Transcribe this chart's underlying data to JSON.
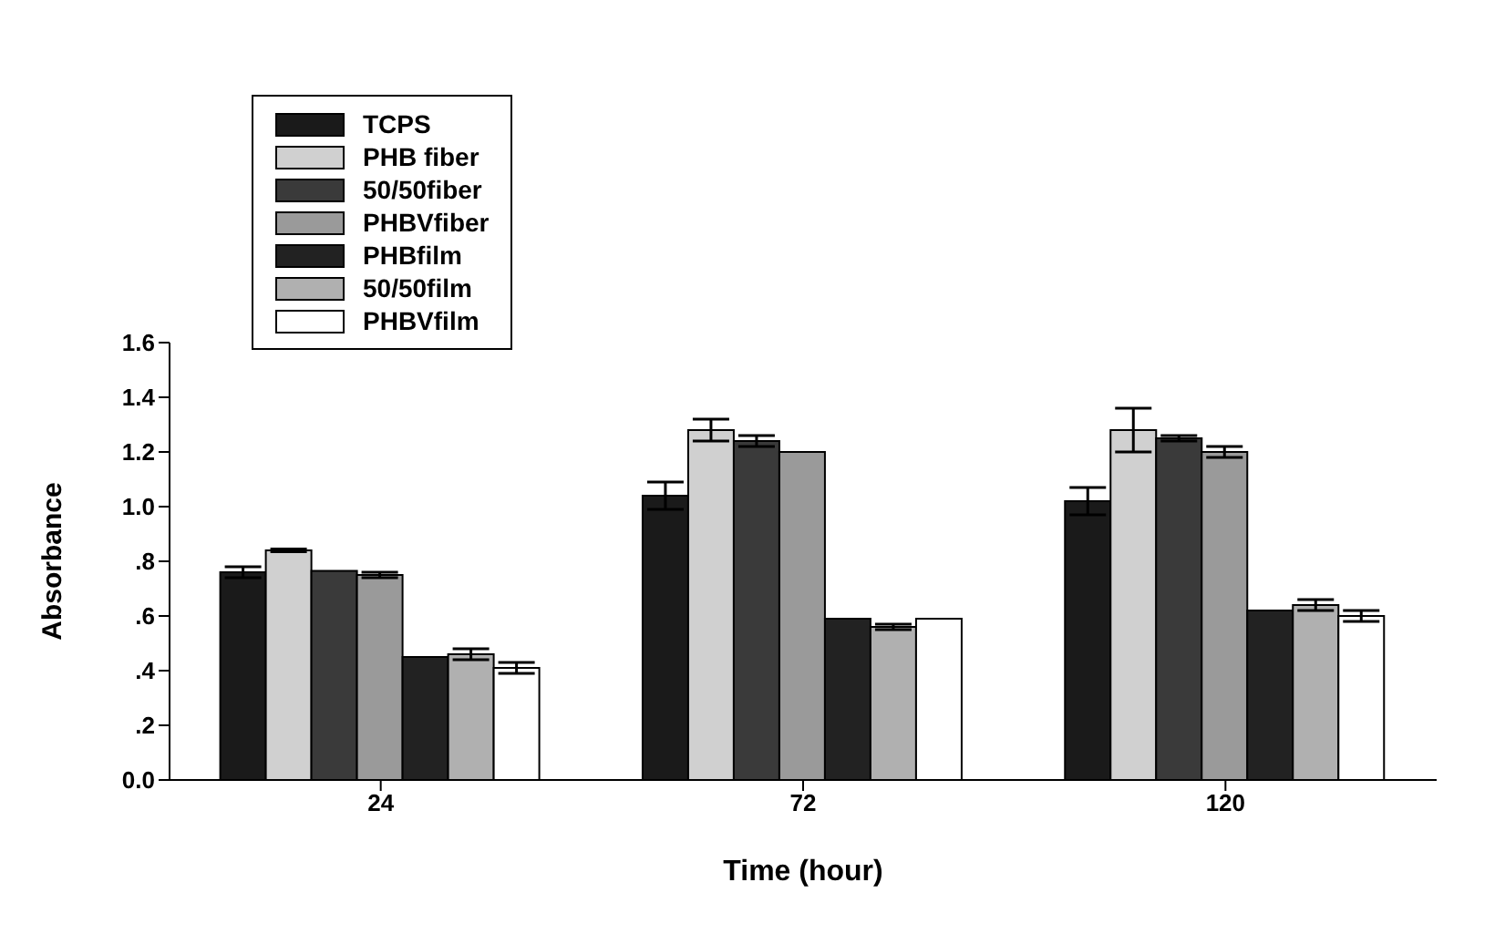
{
  "chart_data": {
    "type": "bar",
    "xlabel": "Time (hour)",
    "ylabel": "Absorbance",
    "categories": [
      "24",
      "72",
      "120"
    ],
    "series": [
      {
        "name": "TCPS",
        "color": "#1a1a1a",
        "values": [
          0.76,
          1.04,
          1.02
        ],
        "errors": [
          0.02,
          0.05,
          0.05
        ]
      },
      {
        "name": "PHB fiber",
        "color": "#d0d0d0",
        "values": [
          0.84,
          1.28,
          1.28
        ],
        "errors": [
          0.005,
          0.04,
          0.08
        ]
      },
      {
        "name": "50/50fiber",
        "color": "#3a3a3a",
        "values": [
          0.765,
          1.24,
          1.25
        ],
        "errors": [
          null,
          0.02,
          0.01
        ]
      },
      {
        "name": "PHBVfiber",
        "color": "#9a9a9a",
        "values": [
          0.75,
          1.2,
          1.2
        ],
        "errors": [
          0.01,
          null,
          0.02
        ]
      },
      {
        "name": "PHBfilm",
        "color": "#222222",
        "values": [
          0.45,
          0.59,
          0.62
        ],
        "errors": [
          null,
          null,
          null
        ]
      },
      {
        "name": "50/50film",
        "color": "#b0b0b0",
        "values": [
          0.46,
          0.56,
          0.64
        ],
        "errors": [
          0.02,
          0.01,
          0.02
        ]
      },
      {
        "name": "PHBVfilm",
        "color": "#ffffff",
        "values": [
          0.41,
          0.59,
          0.6
        ],
        "errors": [
          0.02,
          null,
          0.02
        ]
      }
    ],
    "ylim": [
      0,
      1.6
    ],
    "yticks": [
      {
        "value": 0,
        "label": "0.0"
      },
      {
        "value": 0.2,
        "label": ".2"
      },
      {
        "value": 0.4,
        "label": ".4"
      },
      {
        "value": 0.6,
        "label": ".6"
      },
      {
        "value": 0.8,
        "label": ".8"
      },
      {
        "value": 1,
        "label": "1.0"
      },
      {
        "value": 1.2,
        "label": "1.2"
      },
      {
        "value": 1.4,
        "label": "1.4"
      },
      {
        "value": 1.6,
        "label": "1.6"
      }
    ],
    "legend": "top left",
    "grid": false
  }
}
